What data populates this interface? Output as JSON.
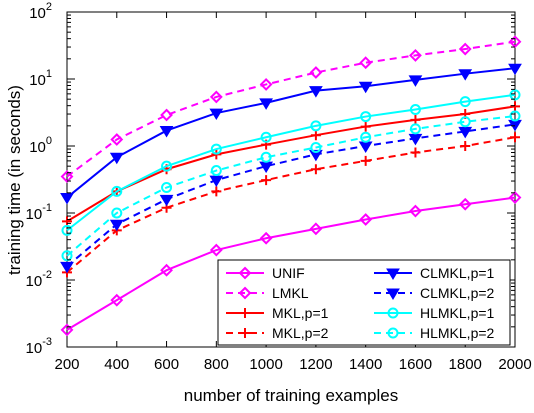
{
  "chart_data": {
    "type": "line",
    "title": "",
    "xlabel": "number of training examples",
    "ylabel": "training time (in seconds)",
    "xlim": [
      200,
      2000
    ],
    "ylim": [
      0.001,
      100
    ],
    "yscale": "log",
    "grid": false,
    "legend_position": "bottom-right",
    "legend_columns": 2,
    "x": [
      200,
      400,
      600,
      800,
      1000,
      1200,
      1400,
      1600,
      1800,
      2000
    ],
    "x_ticks": [
      "200",
      "400",
      "600",
      "800",
      "1000",
      "1200",
      "1400",
      "1600",
      "1800",
      "2000"
    ],
    "y_ticks": [
      {
        "base": "10",
        "exp": "-3",
        "value": 0.001
      },
      {
        "base": "10",
        "exp": "-2",
        "value": 0.01
      },
      {
        "base": "10",
        "exp": "-1",
        "value": 0.1
      },
      {
        "base": "10",
        "exp": "0",
        "value": 1
      },
      {
        "base": "10",
        "exp": "1",
        "value": 10
      },
      {
        "base": "10",
        "exp": "2",
        "value": 100
      }
    ],
    "series": [
      {
        "name": "UNIF",
        "color": "#ff00ff",
        "dash": "solid",
        "marker": "diamond",
        "values": [
          0.0018,
          0.005,
          0.014,
          0.028,
          0.042,
          0.058,
          0.08,
          0.107,
          0.135,
          0.17
        ]
      },
      {
        "name": "LMKL",
        "color": "#ff00ff",
        "dash": "dashed",
        "marker": "diamond",
        "values": [
          0.35,
          1.25,
          2.9,
          5.4,
          8.3,
          12.5,
          17.5,
          22.5,
          28,
          36
        ]
      },
      {
        "name": "MKL,p=1",
        "color": "#ff0000",
        "dash": "solid",
        "marker": "plus",
        "values": [
          0.075,
          0.21,
          0.45,
          0.75,
          1.05,
          1.45,
          1.95,
          2.45,
          3.0,
          3.9
        ]
      },
      {
        "name": "MKL,p=2",
        "color": "#ff0000",
        "dash": "dashed",
        "marker": "plus",
        "values": [
          0.013,
          0.055,
          0.12,
          0.21,
          0.31,
          0.45,
          0.6,
          0.8,
          1.0,
          1.35
        ]
      },
      {
        "name": "CLMKL,p=1",
        "color": "#0000ff",
        "dash": "solid",
        "marker": "triangle-down",
        "values": [
          0.17,
          0.68,
          1.7,
          3.1,
          4.4,
          6.7,
          7.8,
          9.7,
          12,
          14.5
        ]
      },
      {
        "name": "CLMKL,p=2",
        "color": "#0000ff",
        "dash": "dashed",
        "marker": "triangle-down",
        "values": [
          0.016,
          0.068,
          0.16,
          0.31,
          0.5,
          0.75,
          1.0,
          1.3,
          1.65,
          2.1
        ]
      },
      {
        "name": "HLMKL,p=1",
        "color": "#00ffff",
        "dash": "solid",
        "marker": "circle",
        "values": [
          0.055,
          0.21,
          0.5,
          0.9,
          1.35,
          2.0,
          2.75,
          3.5,
          4.6,
          5.8
        ]
      },
      {
        "name": "HLMKL,p=2",
        "color": "#00ffff",
        "dash": "dashed",
        "marker": "circle",
        "values": [
          0.023,
          0.1,
          0.24,
          0.43,
          0.68,
          0.95,
          1.35,
          1.8,
          2.3,
          2.8
        ]
      }
    ]
  }
}
